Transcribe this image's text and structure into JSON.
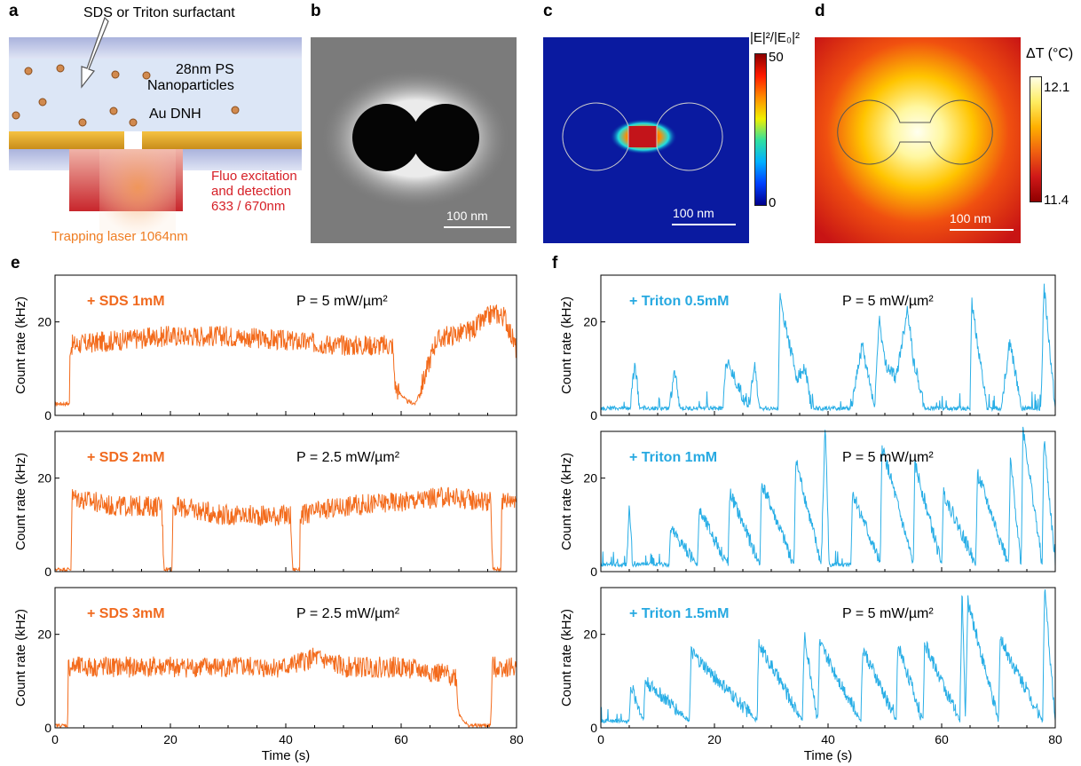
{
  "panel_labels": {
    "a": "a",
    "b": "b",
    "c": "c",
    "d": "d",
    "e": "e",
    "f": "f"
  },
  "schematic": {
    "surfactant": "SDS or Triton surfactant",
    "particles_line1": "28nm PS",
    "particles_line2": "Nanoparticles",
    "film": "Au DNH",
    "fluo_line1": "Fluo excitation",
    "fluo_line2": "and detection",
    "fluo_line3": "633 / 670nm",
    "trap": "Trapping laser 1064nm"
  },
  "sem": {
    "scale": "100 nm"
  },
  "field_map": {
    "colorbar_title": "|E|²/|E₀|²",
    "max_label": "50",
    "min_label": "0",
    "scale": "100 nm"
  },
  "temp_map": {
    "colorbar_title": "ΔT (°C)",
    "max_label": "12.1",
    "min_label": "11.4",
    "scale": "100 nm"
  },
  "colors": {
    "sds": "#f36b1c",
    "triton": "#29aee6",
    "sds_label": "#f06a1f",
    "triton_label": "#27a9e1"
  },
  "chart_data": [
    {
      "type": "line",
      "panel": "e",
      "label": "+ SDS 1mM",
      "power": "P = 5 mW/µm²",
      "ylabel": "Count rate (kHz)",
      "xlim": [
        0,
        80
      ],
      "ylim": [
        0,
        30
      ],
      "xticks": [
        "0",
        "20",
        "40",
        "60",
        "80"
      ],
      "yticks": [
        "0",
        "20"
      ],
      "x": [
        0,
        2.5,
        2.6,
        10,
        20,
        30,
        40,
        50,
        58.5,
        59,
        61,
        62.5,
        64,
        66,
        68,
        72,
        76,
        78,
        80
      ],
      "y": [
        2.5,
        2.5,
        15,
        16,
        17,
        17,
        16,
        15,
        15,
        6,
        3,
        2.5,
        8,
        16,
        17,
        18,
        22,
        21,
        14
      ]
    },
    {
      "type": "line",
      "panel": "e",
      "label": "+ SDS 2mM",
      "power": "P = 2.5 mW/µm²",
      "ylabel": "Count rate (kHz)",
      "xlim": [
        0,
        80
      ],
      "ylim": [
        0,
        30
      ],
      "xticks": [
        "0",
        "20",
        "40",
        "60",
        "80"
      ],
      "yticks": [
        "0",
        "20"
      ],
      "x": [
        0,
        2.8,
        2.9,
        10,
        18.5,
        18.9,
        20.3,
        20.4,
        30,
        40.8,
        41.2,
        42.4,
        42.5,
        50,
        60,
        68,
        75.5,
        75.9,
        77.3,
        77.4,
        80
      ],
      "y": [
        0.5,
        0.5,
        16,
        14,
        14,
        0.5,
        0.5,
        14,
        12,
        12,
        0.5,
        0.5,
        12,
        14,
        15,
        16,
        15,
        0.5,
        0.5,
        15,
        16
      ]
    },
    {
      "type": "line",
      "panel": "e",
      "label": "+ SDS 3mM",
      "power": "P = 2.5 mW/µm²",
      "ylabel": "Count rate (kHz)",
      "xlim": [
        0,
        80
      ],
      "ylim": [
        0,
        30
      ],
      "xticks": [
        "0",
        "20",
        "40",
        "60",
        "80"
      ],
      "yticks": [
        "0",
        "20"
      ],
      "x": [
        0,
        2.2,
        2.3,
        10,
        20,
        30,
        40,
        45,
        50,
        60,
        69.5,
        70,
        71.5,
        75.5,
        75.8,
        80
      ],
      "y": [
        0.5,
        0.5,
        13,
        13,
        13,
        13,
        13,
        15,
        13,
        13,
        11,
        3,
        0.5,
        0.5,
        13,
        13
      ]
    },
    {
      "type": "line",
      "panel": "f",
      "label": "+ Triton 0.5mM",
      "power": "P = 5 mW/µm²",
      "ylabel": "Count rate (kHz)",
      "xlim": [
        0,
        80
      ],
      "ylim": [
        0,
        30
      ],
      "xticks": [
        "0",
        "20",
        "40",
        "60",
        "80"
      ],
      "yticks": [
        "0",
        "20"
      ],
      "x": [
        0,
        5.2,
        6,
        6.8,
        12,
        13,
        14,
        21.5,
        22,
        26,
        27,
        28,
        31.2,
        31.5,
        34.5,
        36,
        37,
        44,
        46,
        48.2,
        49,
        50,
        52,
        54,
        55,
        56,
        57,
        65,
        65.3,
        68,
        70.5,
        72,
        74,
        77.5,
        78,
        80
      ],
      "y": [
        1.5,
        1.5,
        12,
        1.5,
        1.5,
        9,
        1.5,
        1.5,
        12,
        1.5,
        11,
        1.5,
        1.5,
        25,
        8,
        10,
        1.5,
        1.5,
        15,
        1.5,
        21,
        11,
        8,
        23,
        12,
        7,
        1.5,
        1.5,
        24,
        1.5,
        1.5,
        16,
        1.5,
        1.5,
        28,
        1.5
      ]
    },
    {
      "type": "line",
      "panel": "f",
      "label": "+ Triton 1mM",
      "power": "P = 5 mW/µm²",
      "ylabel": "Count rate (kHz)",
      "xlim": [
        0,
        80
      ],
      "ylim": [
        0,
        30
      ],
      "xticks": [
        "0",
        "20",
        "40",
        "60",
        "80"
      ],
      "yticks": [
        "0",
        "20"
      ],
      "x": [
        0,
        4.5,
        5,
        5.6,
        12,
        12.3,
        17,
        17.3,
        22.4,
        22.7,
        28,
        28.3,
        34,
        34.3,
        38.8,
        39.5,
        40.2,
        44,
        44.3,
        49.2,
        49.5,
        55,
        55.3,
        60,
        60.3,
        66,
        66.3,
        71.8,
        72.1,
        74,
        74.3,
        77.7,
        78,
        80
      ],
      "y": [
        1.5,
        1.5,
        14,
        1.5,
        1.5,
        9,
        1.5,
        13,
        1.5,
        17,
        1.5,
        19,
        1.5,
        24,
        1.5,
        32,
        1.5,
        1.5,
        17,
        1.5,
        27,
        1.5,
        23,
        1.5,
        17,
        1.5,
        21,
        1.5,
        24,
        1.5,
        31,
        1.5,
        29,
        1.5
      ]
    },
    {
      "type": "line",
      "panel": "f",
      "label": "+ Triton 1.5mM",
      "power": "P = 5 mW/µm²",
      "ylabel": "Count rate (kHz)",
      "xlim": [
        0,
        80
      ],
      "ylim": [
        0,
        30
      ],
      "xticks": [
        "0",
        "20",
        "40",
        "60",
        "80"
      ],
      "yticks": [
        "0",
        "20"
      ],
      "x": [
        0,
        5,
        5.3,
        7.5,
        7.8,
        15.6,
        15.9,
        27.5,
        27.8,
        35.5,
        35.8,
        38.2,
        38.5,
        45.8,
        46.1,
        52,
        52.3,
        56.7,
        57,
        63.2,
        63.6,
        64.2,
        64.6,
        70,
        70.3,
        77.8,
        78.1,
        80
      ],
      "y": [
        1.5,
        1.5,
        9,
        1.5,
        10,
        1.5,
        16,
        1.5,
        18,
        1.5,
        20,
        1.5,
        18,
        1.5,
        17,
        1.5,
        18,
        1.5,
        18,
        1.5,
        30,
        1.5,
        27,
        1.5,
        19,
        1.5,
        30,
        1.5
      ]
    }
  ],
  "xlabel": "Time (s)"
}
